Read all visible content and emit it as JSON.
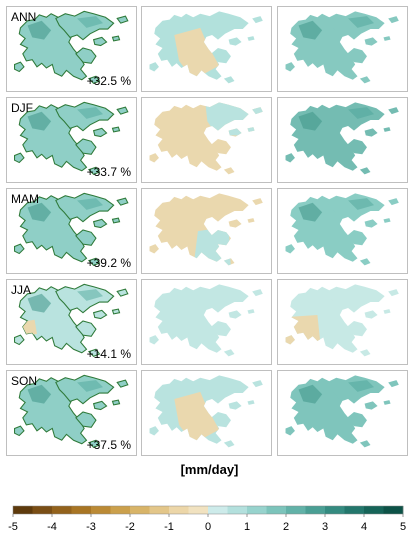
{
  "chart_data": {
    "type": "heatmap",
    "unit_label": "[mm/day]",
    "rows": [
      {
        "season": "ANN",
        "percent": "+32.5 %"
      },
      {
        "season": "DJF",
        "percent": "+33.7 %"
      },
      {
        "season": "MAM",
        "percent": "+39.2 %"
      },
      {
        "season": "JJA",
        "percent": "+14.1 %"
      },
      {
        "season": "SON",
        "percent": "+37.5 %"
      }
    ],
    "colorbar": {
      "min": -5,
      "max": 5,
      "ticks": [
        "-5",
        "-4",
        "-3",
        "-2",
        "-1",
        "0",
        "1",
        "2",
        "3",
        "4",
        "5"
      ],
      "colors": [
        "#5e3a0c",
        "#7a4e15",
        "#93621c",
        "#a87524",
        "#bb8a35",
        "#cba04c",
        "#d8b468",
        "#e3c689",
        "#ecd6a8",
        "#f1e2c0",
        "#cdebea",
        "#b3e0dd",
        "#97d3cd",
        "#7cc4bb",
        "#62b2a8",
        "#4a9f94",
        "#348b80",
        "#23776c",
        "#166458",
        "#0d5247"
      ]
    },
    "panels": [
      [
        {
          "fill": "#8fcfc6",
          "variation": "high"
        },
        {
          "fill": "#b2e1dc",
          "dry": "#ead8ae",
          "dry_area": "center"
        },
        {
          "fill": "#86c9c0",
          "variation": "high"
        }
      ],
      [
        {
          "fill": "#8fcfc6",
          "variation": "high"
        },
        {
          "fill": "#ead8ae",
          "wet": "#b9e3df",
          "wet_area": "east"
        },
        {
          "fill": "#74bcb2",
          "variation": "high"
        }
      ],
      [
        {
          "fill": "#8fcfc6",
          "variation": "high"
        },
        {
          "fill": "#ead8ae",
          "wet": "#b9e3df",
          "wet_area": "south"
        },
        {
          "fill": "#8acdc4",
          "variation": "high"
        }
      ],
      [
        {
          "fill": "#b9e3df",
          "variation": "mixed"
        },
        {
          "fill": "#c2e7e3",
          "variation": "low"
        },
        {
          "fill": "#c7e9e5",
          "dry": "#ead8ae",
          "dry_area": "west"
        }
      ],
      [
        {
          "fill": "#8fcfc6",
          "variation": "high"
        },
        {
          "fill": "#b9e3df",
          "dry": "#ead8ae",
          "dry_area": "center"
        },
        {
          "fill": "#7fc5bc",
          "variation": "high"
        }
      ]
    ]
  }
}
